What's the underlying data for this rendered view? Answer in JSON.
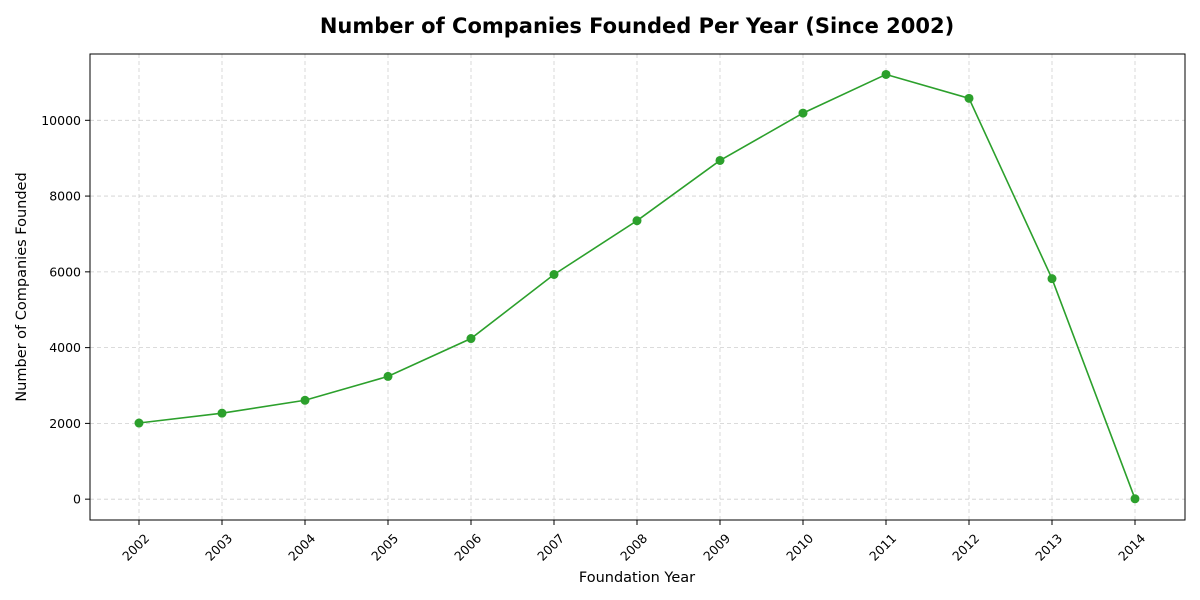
{
  "chart_data": {
    "type": "line",
    "title": "Number of Companies Founded Per Year (Since 2002)",
    "xlabel": "Foundation Year",
    "ylabel": "Number of Companies Founded",
    "categories": [
      "2002",
      "2003",
      "2004",
      "2005",
      "2006",
      "2007",
      "2008",
      "2009",
      "2010",
      "2011",
      "2012",
      "2013",
      "2014"
    ],
    "series": [
      {
        "values": [
          2010,
          2270,
          2610,
          3240,
          4240,
          5930,
          7350,
          8940,
          10190,
          11210,
          10580,
          5820,
          10
        ],
        "color": "#2ca02c"
      }
    ],
    "yticks": [
      0,
      2000,
      4000,
      6000,
      8000,
      10000
    ],
    "ylim": [
      -550,
      11750
    ],
    "grid": true,
    "legend": "none"
  }
}
